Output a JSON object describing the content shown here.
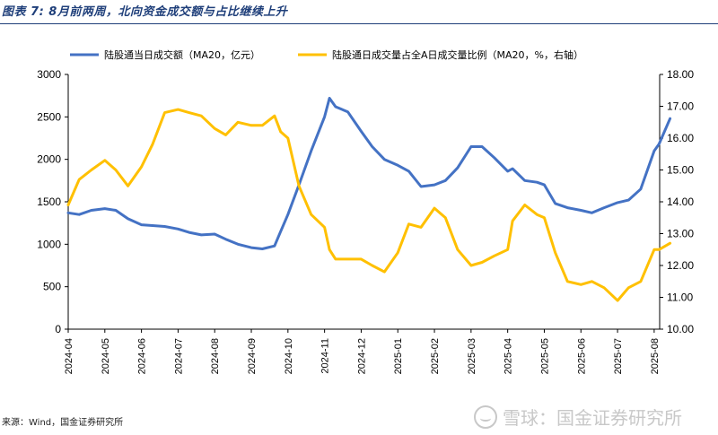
{
  "figure": {
    "title": "图表 7: 8月前两周，北向资金成交额与占比继续上升",
    "source": "来源：Wind，国金证券研究所",
    "watermark": "雪球：国金证券研究所"
  },
  "chart_data": {
    "type": "line",
    "x_categories": [
      "2024-04",
      "2024-05",
      "2024-06",
      "2024-07",
      "2024-08",
      "2024-09",
      "2024-10",
      "2024-11",
      "2024-12",
      "2025-01",
      "2025-02",
      "2025-03",
      "2025-04",
      "2025-05",
      "2025-06",
      "2025-07",
      "2025-08"
    ],
    "y_left": {
      "min": 0,
      "max": 3000,
      "ticks": [
        "0",
        "500",
        "1000",
        "1500",
        "2000",
        "2500",
        "3000"
      ]
    },
    "y_right": {
      "min": 10.0,
      "max": 18.0,
      "ticks": [
        "10.00",
        "11.00",
        "12.00",
        "13.00",
        "14.00",
        "15.00",
        "16.00",
        "17.00",
        "18.00"
      ]
    },
    "grid": false,
    "legend_position": "top",
    "series": [
      {
        "name": "陆股通当日成交额（MA20，亿元）",
        "axis": "left",
        "color": "#4472c4",
        "points": [
          [
            "2024-04",
            1370
          ],
          [
            "2024-04-10",
            1350
          ],
          [
            "2024-04-20",
            1400
          ],
          [
            "2024-05",
            1420
          ],
          [
            "2024-05-10",
            1400
          ],
          [
            "2024-05-20",
            1300
          ],
          [
            "2024-06",
            1230
          ],
          [
            "2024-06-10",
            1220
          ],
          [
            "2024-06-20",
            1210
          ],
          [
            "2024-07",
            1180
          ],
          [
            "2024-07-10",
            1140
          ],
          [
            "2024-07-20",
            1110
          ],
          [
            "2024-08",
            1120
          ],
          [
            "2024-08-10",
            1060
          ],
          [
            "2024-08-20",
            1000
          ],
          [
            "2024-09",
            960
          ],
          [
            "2024-09-10",
            945
          ],
          [
            "2024-09-20",
            980
          ],
          [
            "2024-09-25",
            1150
          ],
          [
            "2024-10",
            1350
          ],
          [
            "2024-10-10",
            1700
          ],
          [
            "2024-10-20",
            2100
          ],
          [
            "2024-11",
            2500
          ],
          [
            "2024-11-05",
            2720
          ],
          [
            "2024-11-10",
            2620
          ],
          [
            "2024-11-20",
            2560
          ],
          [
            "2024-12",
            2330
          ],
          [
            "2024-12-10",
            2150
          ],
          [
            "2024-12-20",
            2000
          ],
          [
            "2025-01",
            1930
          ],
          [
            "2025-01-10",
            1860
          ],
          [
            "2025-01-20",
            1680
          ],
          [
            "2025-02",
            1700
          ],
          [
            "2025-02-10",
            1750
          ],
          [
            "2025-02-20",
            1900
          ],
          [
            "2025-03",
            2150
          ],
          [
            "2025-03-10",
            2150
          ],
          [
            "2025-03-20",
            2020
          ],
          [
            "2025-04",
            1860
          ],
          [
            "2025-04-05",
            1890
          ],
          [
            "2025-04-15",
            1750
          ],
          [
            "2025-04-25",
            1730
          ],
          [
            "2025-05",
            1700
          ],
          [
            "2025-05-10",
            1480
          ],
          [
            "2025-05-20",
            1430
          ],
          [
            "2025-06",
            1400
          ],
          [
            "2025-06-10",
            1370
          ],
          [
            "2025-06-20",
            1430
          ],
          [
            "2025-07",
            1490
          ],
          [
            "2025-07-10",
            1520
          ],
          [
            "2025-07-20",
            1650
          ],
          [
            "2025-08",
            2100
          ],
          [
            "2025-08-05",
            2180
          ],
          [
            "2025-08-14",
            2480
          ]
        ]
      },
      {
        "name": "陆股通日成交量占全A日成交量比例（MA20，%，右轴）",
        "axis": "right",
        "color": "#ffc000",
        "points": [
          [
            "2024-04",
            13.9
          ],
          [
            "2024-04-10",
            14.7
          ],
          [
            "2024-04-20",
            15.0
          ],
          [
            "2024-05",
            15.3
          ],
          [
            "2024-05-10",
            15.0
          ],
          [
            "2024-05-20",
            14.5
          ],
          [
            "2024-06",
            15.1
          ],
          [
            "2024-06-10",
            15.8
          ],
          [
            "2024-06-20",
            16.8
          ],
          [
            "2024-07",
            16.9
          ],
          [
            "2024-07-10",
            16.8
          ],
          [
            "2024-07-20",
            16.7
          ],
          [
            "2024-08",
            16.3
          ],
          [
            "2024-08-10",
            16.1
          ],
          [
            "2024-08-20",
            16.5
          ],
          [
            "2024-09",
            16.4
          ],
          [
            "2024-09-10",
            16.4
          ],
          [
            "2024-09-20",
            16.7
          ],
          [
            "2024-09-25",
            16.2
          ],
          [
            "2024-10",
            16.0
          ],
          [
            "2024-10-10",
            14.5
          ],
          [
            "2024-10-20",
            13.6
          ],
          [
            "2024-11",
            13.2
          ],
          [
            "2024-11-05",
            12.5
          ],
          [
            "2024-11-10",
            12.2
          ],
          [
            "2024-11-20",
            12.2
          ],
          [
            "2024-12",
            12.2
          ],
          [
            "2024-12-10",
            12.0
          ],
          [
            "2024-12-20",
            11.8
          ],
          [
            "2025-01",
            12.4
          ],
          [
            "2025-01-10",
            13.3
          ],
          [
            "2025-01-20",
            13.2
          ],
          [
            "2025-02",
            13.8
          ],
          [
            "2025-02-10",
            13.5
          ],
          [
            "2025-02-20",
            12.5
          ],
          [
            "2025-03",
            12.0
          ],
          [
            "2025-03-10",
            12.1
          ],
          [
            "2025-03-20",
            12.3
          ],
          [
            "2025-04",
            12.5
          ],
          [
            "2025-04-05",
            13.4
          ],
          [
            "2025-04-15",
            13.9
          ],
          [
            "2025-04-25",
            13.6
          ],
          [
            "2025-05",
            13.5
          ],
          [
            "2025-05-10",
            12.4
          ],
          [
            "2025-05-20",
            11.5
          ],
          [
            "2025-06",
            11.4
          ],
          [
            "2025-06-10",
            11.5
          ],
          [
            "2025-06-20",
            11.3
          ],
          [
            "2025-07",
            10.9
          ],
          [
            "2025-07-10",
            11.3
          ],
          [
            "2025-07-20",
            11.5
          ],
          [
            "2025-08",
            12.5
          ],
          [
            "2025-08-05",
            12.5
          ],
          [
            "2025-08-14",
            12.7
          ]
        ]
      }
    ]
  }
}
